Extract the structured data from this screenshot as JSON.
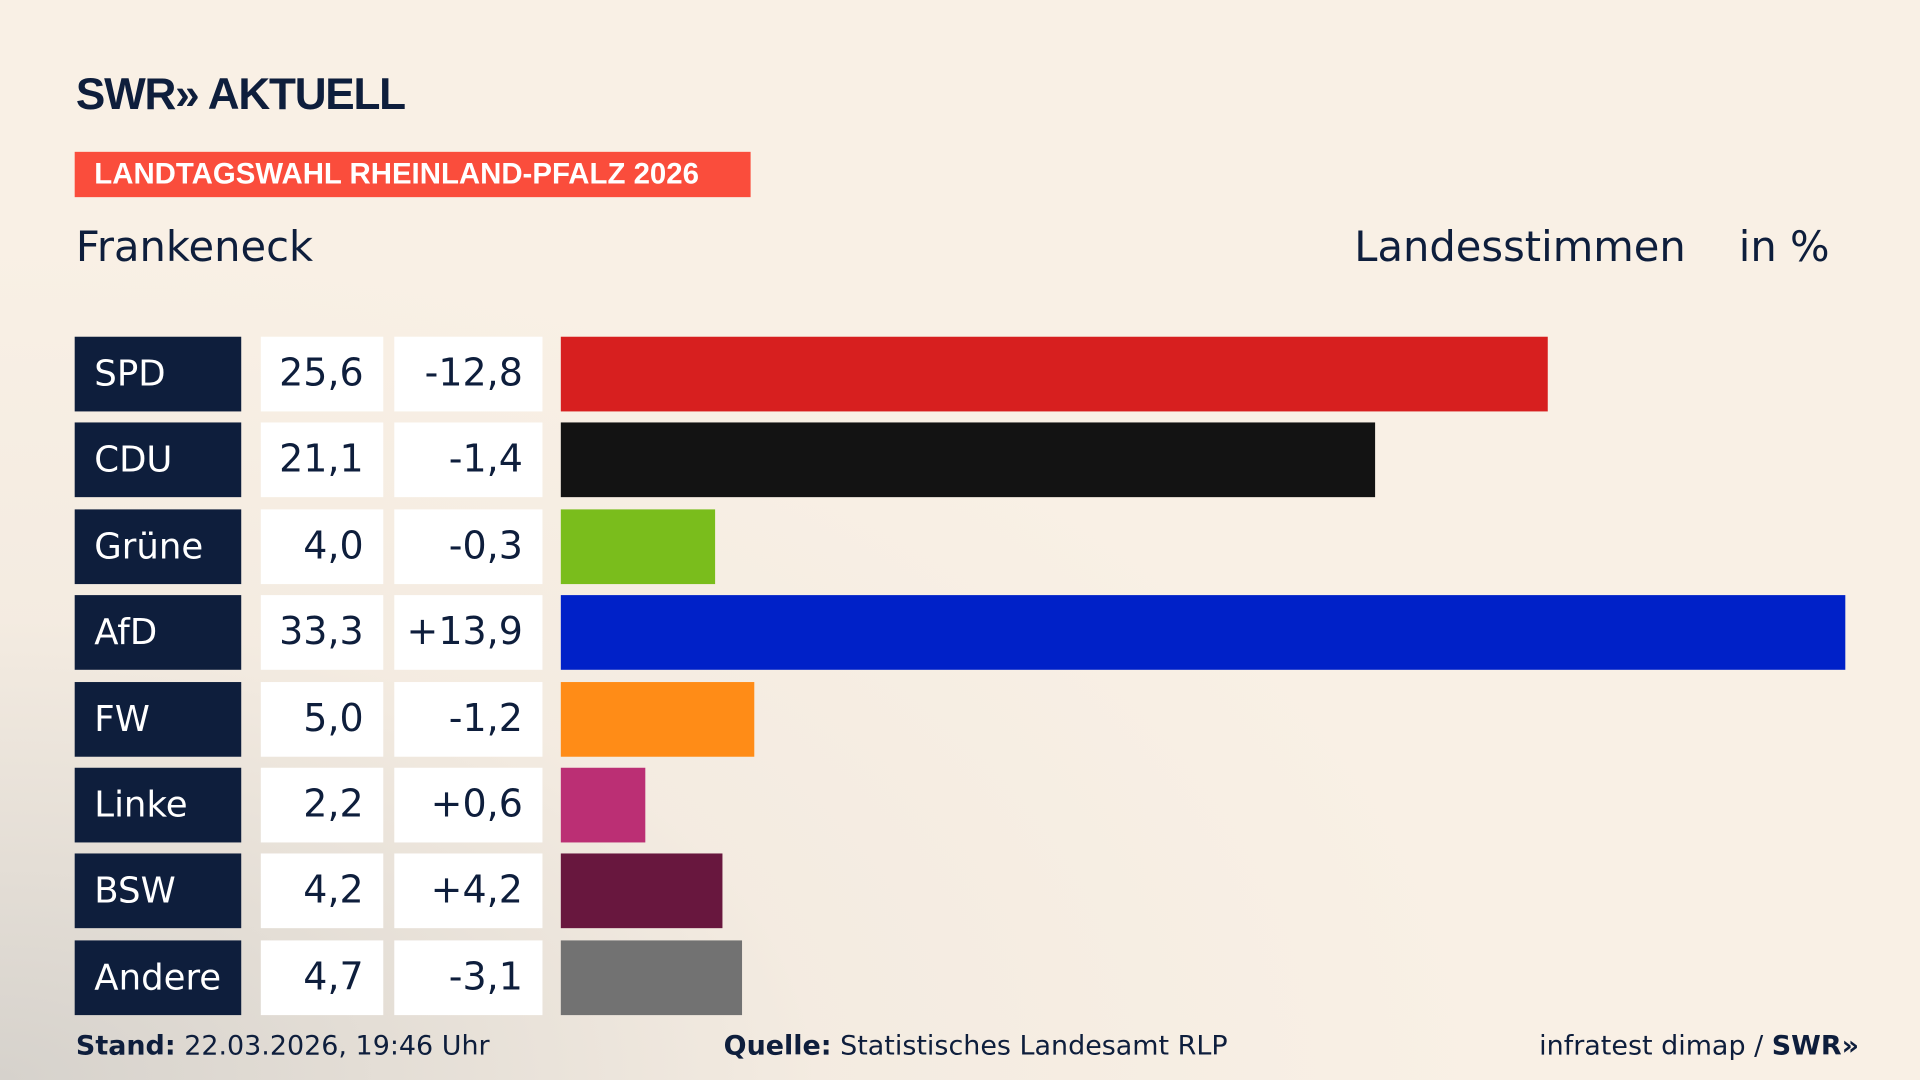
{
  "logo": "SWR» AKTUELL",
  "tag": "LANDTAGSWAHL RHEINLAND-PFALZ 2026",
  "place": "Frankeneck",
  "header": {
    "label": "Landesstimmen",
    "unit": "in %"
  },
  "chart_data": {
    "type": "bar",
    "orientation": "horizontal",
    "categories": [
      "SPD",
      "CDU",
      "Grüne",
      "AfD",
      "FW",
      "Linke",
      "BSW",
      "Andere"
    ],
    "values": [
      25.6,
      21.1,
      4.0,
      33.3,
      5.0,
      2.2,
      4.2,
      4.7
    ],
    "value_labels": [
      "25,6",
      "21,1",
      "4,0",
      "33,3",
      "5,0",
      "2,2",
      "4,2",
      "4,7"
    ],
    "diff_labels": [
      "-12,8",
      "-1,4",
      "-0,3",
      "+13,9",
      "-1,2",
      "+0,6",
      "+4,2",
      "-3,1"
    ],
    "colors": [
      "#d71f1f",
      "#131313",
      "#7abd1c",
      "#0021c8",
      "#ff8c17",
      "#bb2f74",
      "#68173e",
      "#727272"
    ]
  },
  "footer": {
    "stand_label": "Stand:",
    "stand": "22.03.2026, 19:46 Uhr",
    "source_label": "Quelle:",
    "source": "Statistisches Landesamt RLP",
    "credit": "infratest dimap / ",
    "credit_logo": "SWR»"
  }
}
